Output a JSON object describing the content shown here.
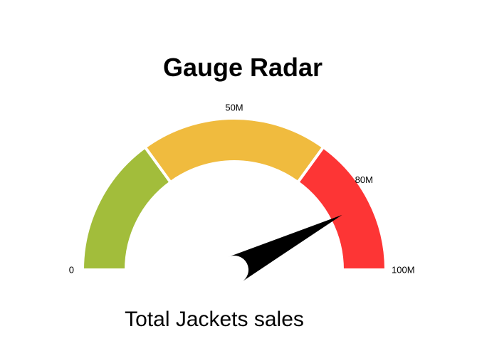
{
  "chart_data": {
    "type": "gauge",
    "title": "Gauge Radar",
    "caption": "Total Jackets sales",
    "min": 0,
    "max": 100,
    "value": 85,
    "bands": [
      {
        "from": 0,
        "to": 30,
        "color": "#a2bd3b"
      },
      {
        "from": 30,
        "to": 70,
        "color": "#f0bb3e"
      },
      {
        "from": 70,
        "to": 100,
        "color": "#fd3535"
      }
    ],
    "tick_labels": [
      {
        "value": 0,
        "label": "0"
      },
      {
        "value": 50,
        "label": "50M"
      },
      {
        "value": 80,
        "label": "80M"
      },
      {
        "value": 100,
        "label": "100M"
      }
    ],
    "needle_color": "#000000"
  }
}
